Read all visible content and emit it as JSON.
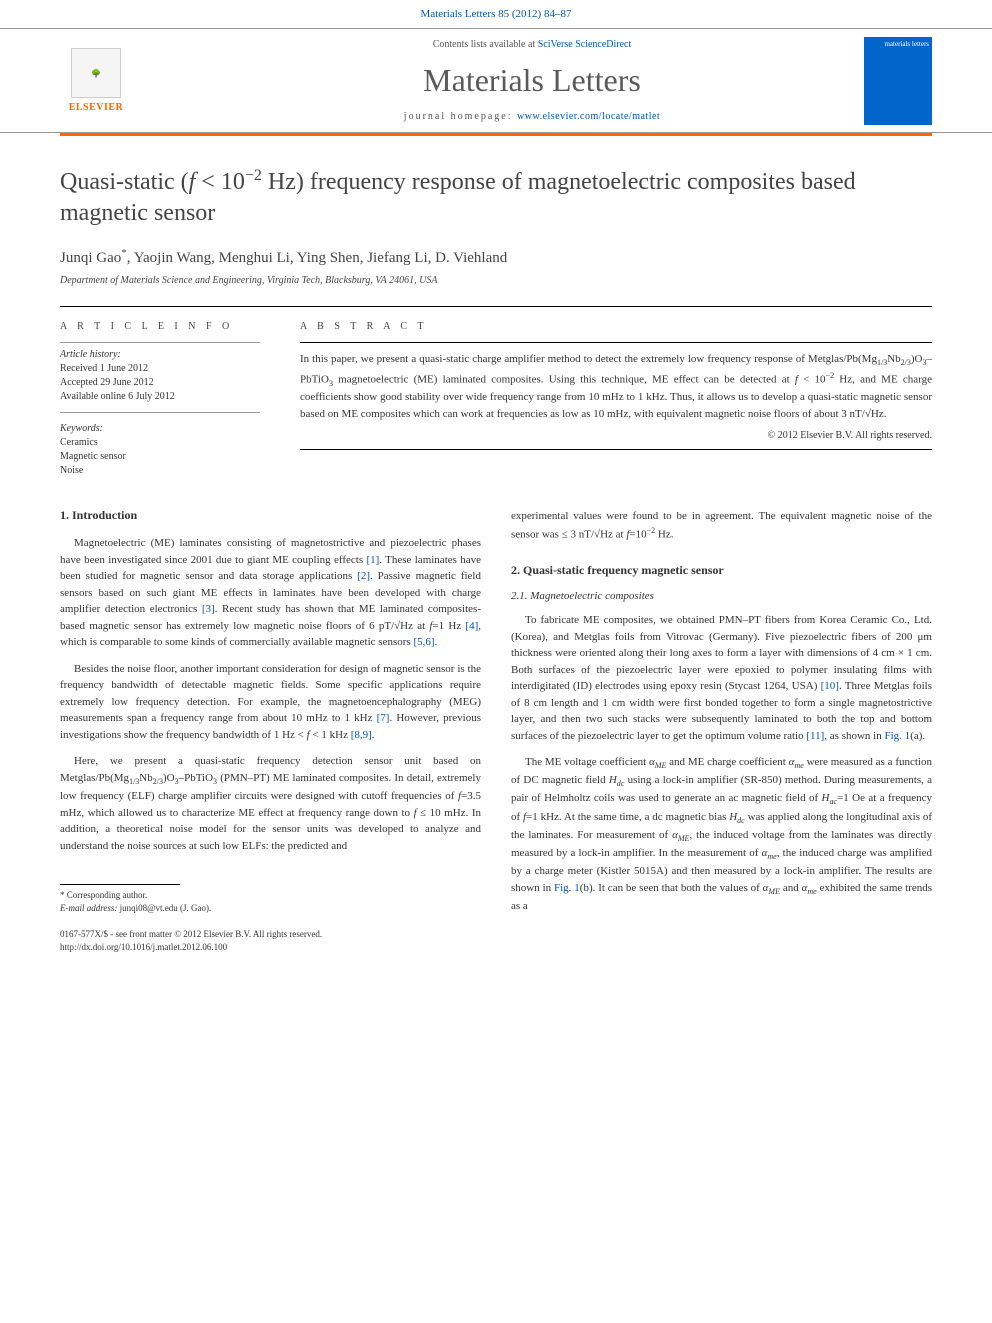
{
  "header": {
    "citation": "Materials Letters 85 (2012) 84–87",
    "contents_prefix": "Contents lists available at ",
    "contents_link": "SciVerse ScienceDirect",
    "journal_name": "Materials Letters",
    "homepage_prefix": "journal homepage: ",
    "homepage_url": "www.elsevier.com/locate/matlet",
    "publisher": "ELSEVIER",
    "cover_label": "materials letters"
  },
  "article": {
    "title_html": "Quasi-static (<span class='ital'>f</span> &lt; 10<span class='sup'>−2</span> Hz) frequency response of magnetoelectric composites based magnetic sensor",
    "authors_html": "Junqi Gao<span class='corr'>*</span>, Yaojin Wang, Menghui Li, Ying Shen, Jiefang Li, D. Viehland",
    "affiliation": "Department of Materials Science and Engineering, Virginia Tech, Blacksburg, VA 24061, USA"
  },
  "meta": {
    "info_heading": "A R T I C L E   I N F O",
    "abstract_heading": "A B S T R A C T",
    "history_label": "Article history:",
    "history": [
      "Received 1 June 2012",
      "Accepted 29 June 2012",
      "Available online 6 July 2012"
    ],
    "keywords_label": "Keywords:",
    "keywords": [
      "Ceramics",
      "Magnetic sensor",
      "Noise"
    ],
    "abstract_html": "In this paper, we present a quasi-static charge amplifier method to detect the extremely low frequency response of Metglas/Pb(Mg<span class='sub'>1/3</span>Nb<span class='sub'>2/3</span>)O<span class='sub'>3</span>–PbTiO<span class='sub'>3</span> magnetoelectric (ME) laminated composites. Using this technique, ME effect can be detected at <span class='ital'>f</span> &lt; 10<span class='sup'>−2</span> Hz, and ME charge coefficients show good stability over wide frequency range from 10 mHz to 1 kHz. Thus, it allows us to develop a quasi-static magnetic sensor based on ME composites which can work at frequencies as low as 10 mHz, with equivalent magnetic noise floors of about 3 nT/√Hz.",
    "copyright": "© 2012 Elsevier B.V. All rights reserved."
  },
  "body": {
    "sec1_heading": "1. Introduction",
    "sec1_p1_html": "Magnetoelectric (ME) laminates consisting of magnetostrictive and piezoelectric phases have been investigated since 2001 due to giant ME coupling effects <span class='reflink'>[1]</span>. These laminates have been studied for magnetic sensor and data storage applications <span class='reflink'>[2]</span>. Passive magnetic field sensors based on such giant ME effects in laminates have been developed with charge amplifier detection electronics <span class='reflink'>[3]</span>. Recent study has shown that ME laminated composites-based magnetic sensor has extremely low magnetic noise floors of 6 pT/√Hz at <span class='ital'>f</span>=1 Hz <span class='reflink'>[4]</span>, which is comparable to some kinds of commercially available magnetic sensors <span class='reflink'>[5,6]</span>.",
    "sec1_p2_html": "Besides the noise floor, another important consideration for design of magnetic sensor is the frequency bandwidth of detectable magnetic fields. Some specific applications require extremely low frequency detection. For example, the magnetoencephalography (MEG) measurements span a frequency range from about 10 mHz to 1 kHz <span class='reflink'>[7]</span>. However, previous investigations show the frequency bandwidth of 1 Hz &lt; <span class='ital'>f</span> &lt; 1 kHz <span class='reflink'>[8,9]</span>.",
    "sec1_p3_html": "Here, we present a quasi-static frequency detection sensor unit based on Metglas/Pb(Mg<span class='sub'>1/3</span>Nb<span class='sub'>2/3</span>)O<span class='sub'>3</span>–PbTiO<span class='sub'>3</span> (PMN–PT) ME laminated composites. In detail, extremely low frequency (ELF) charge amplifier circuits were designed with cutoff frequencies of <span class='ital'>f</span>=3.5 mHz, which allowed us to characterize ME effect at frequency range down to <span class='ital'>f</span> ≤ 10 mHz. In addition, a theoretical noise model for the sensor units was developed to analyze and understand the noise sources at such low ELFs: the predicted and",
    "col2_continue_html": "experimental values were found to be in agreement. The equivalent magnetic noise of the sensor was ≤ 3 nT/√Hz at <span class='ital'>f</span>=10<span class='sup'>−2</span> Hz.",
    "sec2_heading": "2. Quasi-static frequency magnetic sensor",
    "sec2_1_heading": "2.1. Magnetoelectric composites",
    "sec2_p1_html": "To fabricate ME composites, we obtained PMN–PT fibers from Korea Ceramic Co., Ltd. (Korea), and Metglas foils from Vitrovac (Germany). Five piezoelectric fibers of 200 μm thickness were oriented along their long axes to form a layer with dimensions of 4 cm × 1 cm. Both surfaces of the piezoelectric layer were epoxied to polymer insulating films with interdigitated (ID) electrodes using epoxy resin (Stycast 1264, USA) <span class='reflink'>[10]</span>. Three Metglas foils of 8 cm length and 1 cm width were first bonded together to form a single magnetostrictive layer, and then two such stacks were subsequently laminated to both the top and bottom surfaces of the piezoelectric layer to get the optimum volume ratio <span class='reflink'>[11]</span>, as shown in <span class='reflink'>Fig. 1</span>(a).",
    "sec2_p2_html": "The ME voltage coefficient <span class='ital'>α<span class='sub'>ME</span></span> and ME charge coefficient <span class='ital'>α<span class='sub'>me</span></span> were measured as a function of DC magnetic field <span class='ital'>H<span class='sub'>dc</span></span> using a lock-in amplifier (SR-850) method. During measurements, a pair of Helmholtz coils was used to generate an ac magnetic field of <span class='ital'>H<span class='sub'>ac</span></span>=1 Oe at a frequency of <span class='ital'>f</span>=1 kHz. At the same time, a dc magnetic bias <span class='ital'>H<span class='sub'>dc</span></span> was applied along the longitudinal axis of the laminates. For measurement of <span class='ital'>α<span class='sub'>ME</span></span>, the induced voltage from the laminates was directly measured by a lock-in amplifier. In the measurement of <span class='ital'>α<span class='sub'>me</span></span>, the induced charge was amplified by a charge meter (Kistler 5015A) and then measured by a lock-in amplifier. The results are shown in <span class='reflink'>Fig. 1</span>(b). It can be seen that both the values of <span class='ital'>α<span class='sub'>ME</span></span> and <span class='ital'>α<span class='sub'>me</span></span> exhibited the same trends as a"
  },
  "footer": {
    "corresponding": "* Corresponding author.",
    "email_label": "E-mail address:",
    "email": "junqi08@vt.edu (J. Gao).",
    "issn_line": "0167-577X/$ - see front matter © 2012 Elsevier B.V. All rights reserved.",
    "doi_line": "http://dx.doi.org/10.1016/j.matlet.2012.06.100"
  }
}
